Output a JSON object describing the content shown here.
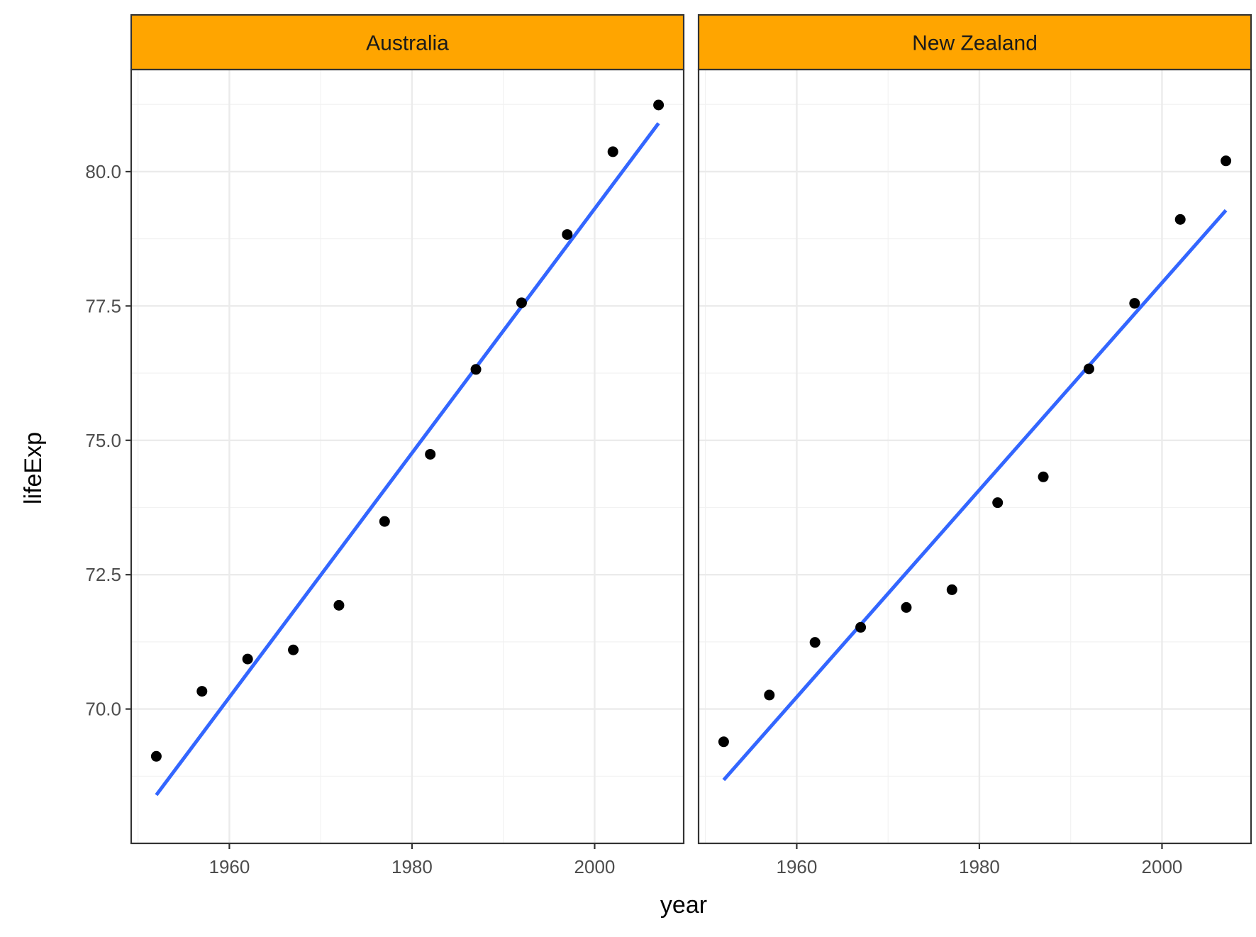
{
  "chart_data": {
    "type": "scatter",
    "xlabel": "year",
    "ylabel": "lifeExp",
    "xlim": [
      1949.25,
      2009.75
    ],
    "ylim": [
      67.5,
      81.9
    ],
    "x_ticks": [
      1960,
      1980,
      2000
    ],
    "x_tick_labels": [
      "1960",
      "1980",
      "2000"
    ],
    "y_ticks": [
      70.0,
      72.5,
      75.0,
      77.5,
      80.0
    ],
    "y_tick_labels": [
      "70.0",
      "72.5",
      "75.0",
      "77.5",
      "80.0"
    ],
    "grid": true,
    "strip_color": "#FFA500",
    "point_color": "#000000",
    "line_color": "#3366FF",
    "panels": [
      {
        "title": "Australia",
        "x": [
          1952,
          1957,
          1962,
          1967,
          1972,
          1977,
          1982,
          1987,
          1992,
          1997,
          2002,
          2007
        ],
        "y": [
          69.12,
          70.33,
          70.93,
          71.1,
          71.93,
          73.49,
          74.74,
          76.32,
          77.56,
          78.83,
          80.37,
          81.24
        ],
        "fit": {
          "x": [
            1952,
            2007
          ],
          "y": [
            68.4,
            80.9
          ]
        }
      },
      {
        "title": "New Zealand",
        "x": [
          1952,
          1957,
          1962,
          1967,
          1972,
          1977,
          1982,
          1987,
          1992,
          1997,
          2002,
          2007
        ],
        "y": [
          69.39,
          70.26,
          71.24,
          71.52,
          71.89,
          72.22,
          73.84,
          74.32,
          76.33,
          77.55,
          79.11,
          80.2
        ],
        "fit": {
          "x": [
            1952,
            2007
          ],
          "y": [
            68.68,
            79.28
          ]
        }
      }
    ]
  }
}
